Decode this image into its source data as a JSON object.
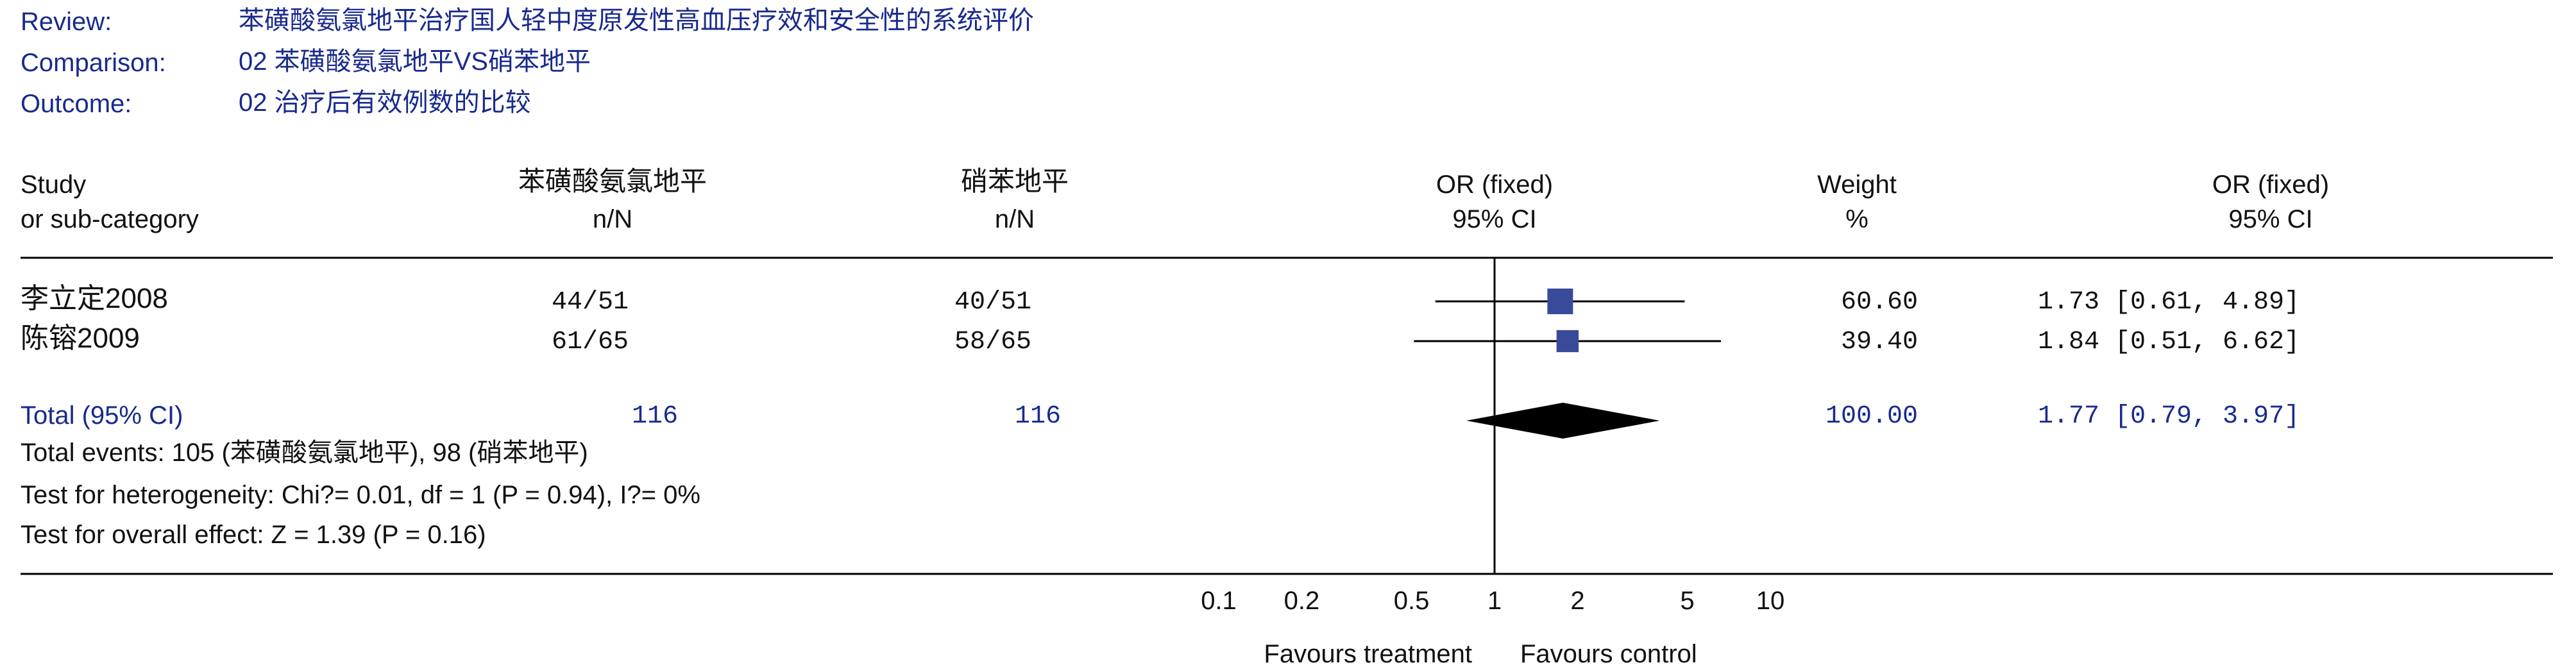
{
  "meta": {
    "review_label": "Review:",
    "review": "苯磺酸氨氯地平治疗国人轻中度原发性高血压疗效和安全性的系统评价",
    "comparison_label": "Comparison:",
    "comparison": "02 苯磺酸氨氯地平VS硝苯地平",
    "outcome_label": "Outcome:",
    "outcome": "02 治疗后有效例数的比较"
  },
  "columns": {
    "study_1": "Study",
    "study_2": "or sub-category",
    "treat_1": "苯磺酸氨氯地平",
    "treat_2": "n/N",
    "ctrl_1": "硝苯地平",
    "ctrl_2": "n/N",
    "plot_1": "OR (fixed)",
    "plot_2": "95% CI",
    "weight_1": "Weight",
    "weight_2": "%",
    "or_1": "OR (fixed)",
    "or_2": "95% CI"
  },
  "studies": [
    {
      "name": "李立定2008",
      "treatment": "44/51",
      "control": "40/51",
      "weight": "60.60",
      "or_text": "1.73 [0.61, 4.89]"
    },
    {
      "name": "陈镕2009",
      "treatment": "61/65",
      "control": "58/65",
      "weight": "39.40",
      "or_text": "1.84 [0.51, 6.62]"
    }
  ],
  "total": {
    "label": "Total (95% CI)",
    "treatment": "116",
    "control": "116",
    "weight": "100.00",
    "or_text": "1.77 [0.79, 3.97]",
    "events": "Total events: 105 (苯磺酸氨氯地平), 98 (硝苯地平)",
    "heterogeneity": "Test for heterogeneity: Chi?= 0.01, df = 1 (P = 0.94), I?= 0%",
    "overall": "Test for overall effect: Z = 1.39 (P = 0.16)"
  },
  "footer": {
    "favours_left": "Favours treatment",
    "favours_right": "Favours control"
  },
  "colors": {
    "text_blue": "#1a2a8c",
    "marker": "#3a4a9a",
    "diamond": "#000000",
    "line": "#000000"
  },
  "chart_data": {
    "type": "forest",
    "scale": "log",
    "xlim": [
      0.1,
      10
    ],
    "null_value": 1,
    "ticks": [
      0.1,
      0.2,
      0.5,
      1,
      2,
      5,
      10
    ],
    "tick_labels": [
      "0.1",
      "0.2",
      "0.5",
      "1",
      "2",
      "5",
      "10"
    ],
    "studies": [
      {
        "name": "李立定2008",
        "or": 1.73,
        "lower": 0.61,
        "upper": 4.89,
        "weight": 60.6
      },
      {
        "name": "陈镕2009",
        "or": 1.84,
        "lower": 0.51,
        "upper": 6.62,
        "weight": 39.4
      }
    ],
    "pooled": {
      "or": 1.77,
      "lower": 0.79,
      "upper": 3.97
    }
  }
}
